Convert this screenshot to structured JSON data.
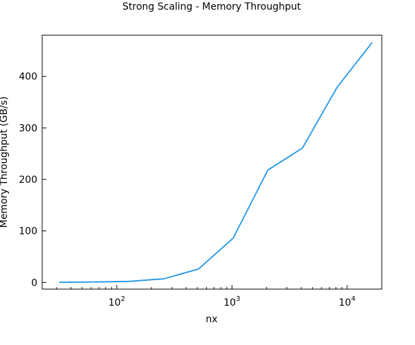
{
  "chart_data": {
    "type": "line",
    "title": "Strong Scaling - Memory Throughput",
    "xlabel": "nx",
    "ylabel": "Memory Throughput (GB/s)",
    "xscale": "log",
    "xlim": [
      22.5,
      20000
    ],
    "ylim": [
      -13,
      480
    ],
    "grid": false,
    "legend": "none",
    "x_ticks": [
      {
        "value": 100,
        "base": "10",
        "exp": "2"
      },
      {
        "value": 1000,
        "base": "10",
        "exp": "3"
      },
      {
        "value": 10000,
        "base": "10",
        "exp": "4"
      }
    ],
    "y_ticks": [
      0,
      100,
      200,
      300,
      400
    ],
    "series": [
      {
        "color": "#1f96e8",
        "x": [
          32,
          64,
          128,
          256,
          512,
          1024,
          2048,
          4096,
          8192,
          16384
        ],
        "y": [
          0.3,
          0.8,
          2.0,
          7.0,
          26,
          86,
          218,
          261,
          379,
          465
        ]
      }
    ]
  }
}
